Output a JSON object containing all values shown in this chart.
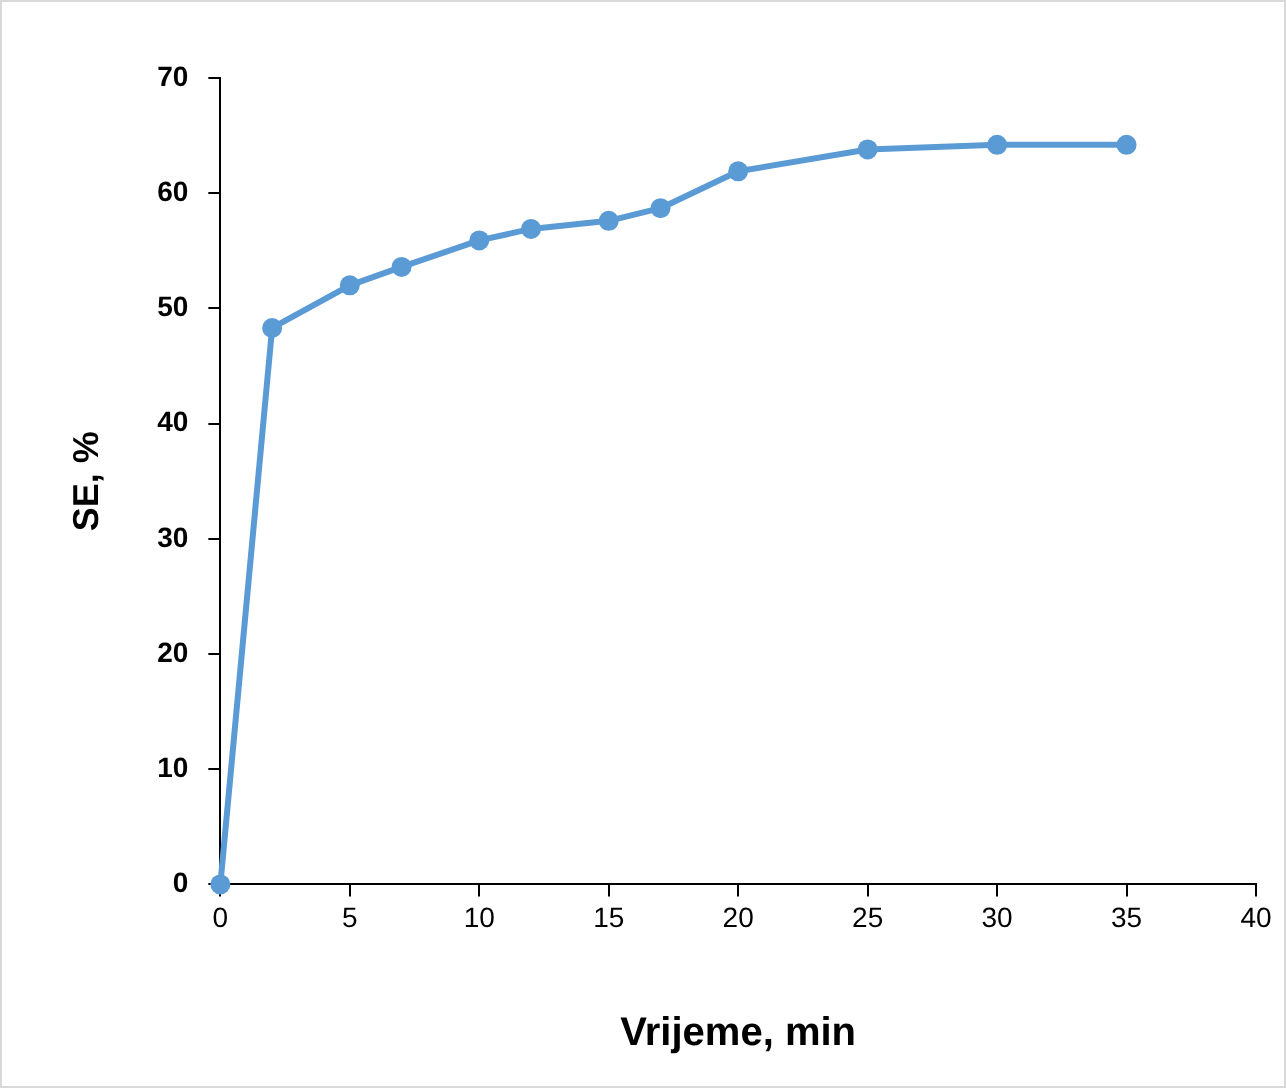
{
  "chart_data": {
    "type": "line",
    "xlabel": "Vrijeme, min",
    "ylabel": "SE, %",
    "x": [
      0,
      2,
      5,
      7,
      10,
      12,
      15,
      17,
      20,
      25,
      30,
      35
    ],
    "series": [
      {
        "color": "#5b9bd5",
        "values": [
          0,
          48.3,
          52,
          53.6,
          55.9,
          56.9,
          57.6,
          58.7,
          61.9,
          63.8,
          64.2,
          64.2
        ]
      }
    ],
    "xlim": [
      0,
      40
    ],
    "xticks": [
      0,
      5,
      10,
      15,
      20,
      25,
      30,
      35,
      40
    ],
    "ylim": [
      0,
      70
    ],
    "yticks": [
      0,
      10,
      20,
      30,
      40,
      50,
      60,
      70
    ],
    "grid": false,
    "legend": false,
    "marker": "circle",
    "line_style": "solid"
  }
}
